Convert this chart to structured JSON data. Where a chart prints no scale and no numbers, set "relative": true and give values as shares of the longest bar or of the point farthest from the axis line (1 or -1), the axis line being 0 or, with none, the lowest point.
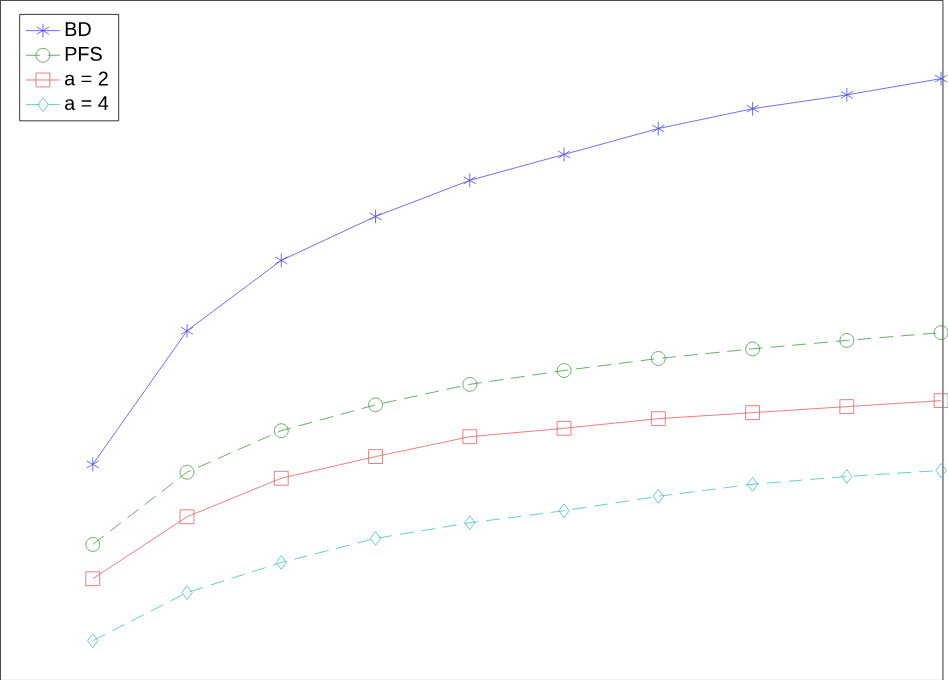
{
  "chart_data": {
    "type": "line",
    "relative": true,
    "legend": "top left",
    "categories": [
      null,
      null,
      null,
      null,
      null,
      null,
      null,
      null,
      null,
      null
    ],
    "series": [
      {
        "name": "BD",
        "color": "#4a4af5",
        "marker": "cross",
        "line_style": "solid",
        "values": [
          0.359,
          0.581,
          0.698,
          0.771,
          0.831,
          0.874,
          0.917,
          0.95,
          0.973,
          1
        ]
      },
      {
        "name": "PFS",
        "color": "#3f9a3f",
        "marker": "circle",
        "line_style": "dashed",
        "values": [
          0.226,
          0.346,
          0.415,
          0.458,
          0.492,
          0.515,
          0.535,
          0.551,
          0.565,
          0.578
        ]
      },
      {
        "name": "a = 2",
        "color": "#f05a5a",
        "marker": "square",
        "line_style": "solid",
        "values": [
          0.169,
          0.272,
          0.336,
          0.372,
          0.405,
          0.419,
          0.435,
          0.445,
          0.455,
          0.465
        ]
      },
      {
        "name": "a = 4",
        "color": "#3fbfbf",
        "marker": "diamond",
        "line_style": "dashed",
        "values": [
          0.066,
          0.146,
          0.196,
          0.236,
          0.262,
          0.282,
          0.306,
          0.326,
          0.339,
          0.349
        ]
      }
    ]
  }
}
